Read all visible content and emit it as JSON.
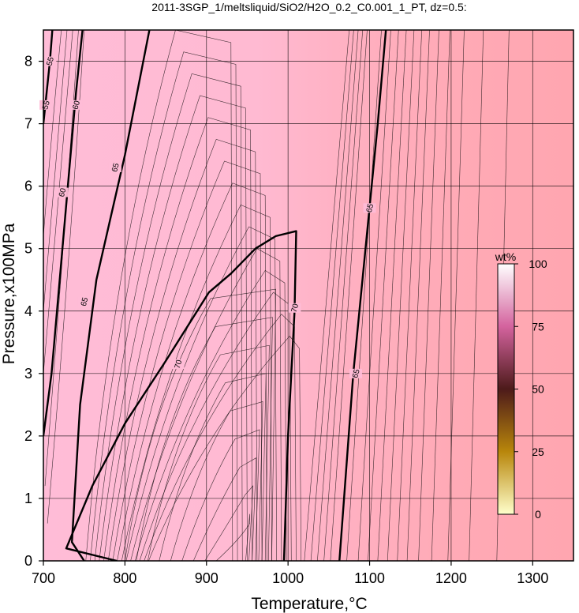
{
  "chart_data": {
    "type": "contour",
    "title": "2011-3SGP_1/meltsliquid/SiO2/H2O_0.2_C0.001_1_PT, dz=0.5:",
    "xlabel": "Temperature,°C",
    "ylabel": "Pressure,x100MPa",
    "xlim": [
      700,
      1350
    ],
    "ylim": [
      0,
      8.5
    ],
    "x_ticks": [
      "700",
      "800",
      "900",
      "1000",
      "1100",
      "1200",
      "1300"
    ],
    "y_ticks": [
      "0",
      "1",
      "2",
      "3",
      "4",
      "5",
      "6",
      "7",
      "8"
    ],
    "grid": true,
    "contour_interval": 0.5,
    "bold_contours": [
      {
        "level": 55,
        "label": "55",
        "points": [
          [
            700,
            7.0
          ],
          [
            704,
            7.5
          ],
          [
            708,
            8.0
          ],
          [
            711,
            8.5
          ]
        ],
        "labels_at": [
          [
            708,
            8.0
          ],
          [
            703,
            7.3
          ]
        ]
      },
      {
        "level": 60,
        "label": "60",
        "points": [
          [
            700,
            2.0
          ],
          [
            710,
            3.0
          ],
          [
            720,
            4.5
          ],
          [
            730,
            6.0
          ],
          [
            740,
            7.5
          ],
          [
            748,
            8.5
          ]
        ],
        "labels_at": [
          [
            740,
            7.3
          ],
          [
            723,
            5.9
          ]
        ]
      },
      {
        "level": 65,
        "label": "65",
        "points": [
          [
            750,
            0.0
          ],
          [
            735,
            0.3
          ],
          [
            745,
            2.5
          ],
          [
            765,
            4.5
          ],
          [
            800,
            6.5
          ],
          [
            830,
            8.5
          ]
        ],
        "labels_at": [
          [
            750,
            4.15
          ],
          [
            788,
            6.3
          ]
        ]
      },
      {
        "level": 65,
        "label": "65",
        "points": [
          [
            1063,
            0.0
          ],
          [
            1080,
            3.0
          ],
          [
            1095,
            5.0
          ],
          [
            1110,
            7.0
          ],
          [
            1120,
            8.5
          ]
        ],
        "labels_at": [
          [
            1083,
            3.0
          ],
          [
            1100,
            5.65
          ]
        ]
      },
      {
        "level": 70,
        "label": "70",
        "points": [
          [
            790,
            0.0
          ],
          [
            728,
            0.2
          ],
          [
            760,
            1.2
          ],
          [
            800,
            2.2
          ],
          [
            850,
            3.2
          ],
          [
            903,
            4.3
          ],
          [
            930,
            4.6
          ],
          [
            960,
            5.0
          ],
          [
            985,
            5.2
          ],
          [
            1010,
            5.28
          ],
          [
            1008,
            4.0
          ],
          [
            1000,
            2.0
          ],
          [
            995,
            0.0
          ]
        ],
        "labels_at": [
          [
            865,
            3.15
          ],
          [
            1008,
            4.05
          ]
        ]
      }
    ],
    "colorbar": {
      "label": "wt%",
      "range": [
        0,
        100
      ],
      "ticks": [
        "0",
        "25",
        "50",
        "75",
        "100"
      ],
      "colors": [
        "#ffffcc",
        "#b8860b",
        "#4d1a1a",
        "#d4639e",
        "#ffffff"
      ]
    },
    "background": {
      "colors": [
        "#ffbcd7",
        "#ffbad2",
        "#ffb0c1",
        "#ffaab6",
        "#ffa6b0"
      ],
      "temperature_stops": [
        700,
        960,
        1080,
        1200,
        1350
      ]
    }
  }
}
